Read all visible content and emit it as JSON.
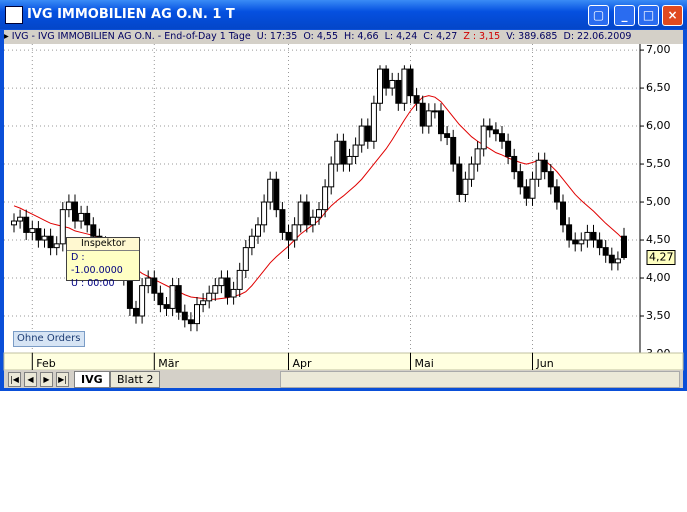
{
  "window": {
    "title": "IVG IMMOBILIEN AG O.N. 1 T"
  },
  "info_bar": {
    "label": "IVG - IVG IMMOBILIEN AG O.N. - End-of-Day 1 Tage",
    "items": [
      {
        "key": "U:",
        "value": "17:35"
      },
      {
        "key": "O:",
        "value": "4,55"
      },
      {
        "key": "H:",
        "value": "4,66"
      },
      {
        "key": "L:",
        "value": "4,24"
      },
      {
        "key": "C:",
        "value": "4,27"
      },
      {
        "key": "Z :",
        "value": "3,15"
      },
      {
        "key": "V:",
        "value": "389.685"
      },
      {
        "key": "D:",
        "value": "22.06.2009"
      }
    ]
  },
  "chart_data": {
    "type": "candlestick",
    "categories": [
      null,
      null,
      null,
      "Feb",
      null,
      null,
      null,
      null,
      null,
      null,
      null,
      null,
      null,
      null,
      null,
      null,
      null,
      null,
      null,
      null,
      null,
      null,
      null,
      "Mär",
      null,
      null,
      null,
      null,
      null,
      null,
      null,
      null,
      null,
      null,
      null,
      null,
      null,
      null,
      null,
      null,
      null,
      null,
      null,
      null,
      null,
      "Apr",
      null,
      null,
      null,
      null,
      null,
      null,
      null,
      null,
      null,
      null,
      null,
      null,
      null,
      null,
      null,
      null,
      null,
      null,
      null,
      "Mai",
      null,
      null,
      null,
      null,
      null,
      null,
      null,
      null,
      null,
      null,
      null,
      null,
      null,
      null,
      null,
      null,
      null,
      null,
      null,
      "Jun",
      null,
      null,
      null,
      null,
      null,
      null,
      null,
      null,
      null,
      null,
      null,
      null,
      null,
      null,
      null
    ],
    "open": [
      4.7,
      4.75,
      4.8,
      4.6,
      4.65,
      4.5,
      4.55,
      4.4,
      4.45,
      4.9,
      5.0,
      4.75,
      4.85,
      4.7,
      4.55,
      4.45,
      4.4,
      4.3,
      4.2,
      4.0,
      3.6,
      3.5,
      3.9,
      4.0,
      3.8,
      3.65,
      3.6,
      3.9,
      3.55,
      3.45,
      3.4,
      3.65,
      3.7,
      3.8,
      3.9,
      4.0,
      3.75,
      3.85,
      4.1,
      4.4,
      4.55,
      4.7,
      5.0,
      5.3,
      4.9,
      4.6,
      4.5,
      4.7,
      5.0,
      4.7,
      4.8,
      4.9,
      5.2,
      5.5,
      5.8,
      5.5,
      5.6,
      5.75,
      6.0,
      5.8,
      6.3,
      6.75,
      6.5,
      6.6,
      6.3,
      6.75,
      6.4,
      6.3,
      6.0,
      6.2,
      6.2,
      5.9,
      5.85,
      5.5,
      5.1,
      5.3,
      5.5,
      5.7,
      6.0,
      5.95,
      5.9,
      5.8,
      5.6,
      5.4,
      5.2,
      5.05,
      5.3,
      5.55,
      5.4,
      5.2,
      5.0,
      4.7,
      4.5,
      4.45,
      4.5,
      4.6,
      4.5,
      4.4,
      4.3,
      4.2,
      4.55
    ],
    "high": [
      4.85,
      4.9,
      4.9,
      4.75,
      4.75,
      4.65,
      4.65,
      4.55,
      5.0,
      5.1,
      5.1,
      4.95,
      4.95,
      4.8,
      4.65,
      4.55,
      4.5,
      4.4,
      4.3,
      4.1,
      3.7,
      4.0,
      4.1,
      4.1,
      3.9,
      3.75,
      4.0,
      4.0,
      3.65,
      3.55,
      3.75,
      3.8,
      3.9,
      4.0,
      4.1,
      4.1,
      3.95,
      4.2,
      4.5,
      4.65,
      4.8,
      5.1,
      5.4,
      5.4,
      5.0,
      4.7,
      4.8,
      5.1,
      5.1,
      4.9,
      5.0,
      5.3,
      5.6,
      5.9,
      5.9,
      5.7,
      5.85,
      6.1,
      6.1,
      6.4,
      6.8,
      6.8,
      6.7,
      6.7,
      6.8,
      6.8,
      6.5,
      6.4,
      6.3,
      6.3,
      6.3,
      6.0,
      5.95,
      5.6,
      5.4,
      5.6,
      5.8,
      6.1,
      6.1,
      6.05,
      6.0,
      5.9,
      5.7,
      5.5,
      5.3,
      5.4,
      5.65,
      5.65,
      5.5,
      5.3,
      5.1,
      4.8,
      4.6,
      4.6,
      4.7,
      4.7,
      4.6,
      4.5,
      4.4,
      4.35,
      4.66
    ],
    "low": [
      4.6,
      4.65,
      4.5,
      4.5,
      4.4,
      4.4,
      4.3,
      4.3,
      4.35,
      4.8,
      4.65,
      4.65,
      4.6,
      4.45,
      4.35,
      4.3,
      4.2,
      4.1,
      3.9,
      3.5,
      3.4,
      3.4,
      3.8,
      3.7,
      3.55,
      3.5,
      3.5,
      3.45,
      3.35,
      3.3,
      3.3,
      3.55,
      3.6,
      3.7,
      3.8,
      3.65,
      3.65,
      3.75,
      4.0,
      4.3,
      4.45,
      4.6,
      4.9,
      4.8,
      4.5,
      4.25,
      4.4,
      4.6,
      4.6,
      4.6,
      4.7,
      4.8,
      5.1,
      5.4,
      5.4,
      5.4,
      5.5,
      5.65,
      5.7,
      5.7,
      6.2,
      6.4,
      6.4,
      6.2,
      6.2,
      6.3,
      6.2,
      5.9,
      5.9,
      6.1,
      5.8,
      5.75,
      5.4,
      5.0,
      5.0,
      5.2,
      5.4,
      5.6,
      5.85,
      5.8,
      5.7,
      5.5,
      5.3,
      5.1,
      4.95,
      4.95,
      5.2,
      5.3,
      5.1,
      4.9,
      4.6,
      4.4,
      4.35,
      4.35,
      4.4,
      4.4,
      4.3,
      4.2,
      4.1,
      4.1,
      4.24
    ],
    "close": [
      4.75,
      4.8,
      4.6,
      4.65,
      4.5,
      4.55,
      4.4,
      4.45,
      4.9,
      5.0,
      4.75,
      4.85,
      4.7,
      4.55,
      4.45,
      4.4,
      4.3,
      4.2,
      4.0,
      3.6,
      3.5,
      3.9,
      4.0,
      3.8,
      3.65,
      3.6,
      3.9,
      3.55,
      3.45,
      3.4,
      3.65,
      3.7,
      3.8,
      3.9,
      4.0,
      3.75,
      3.85,
      4.1,
      4.4,
      4.55,
      4.7,
      5.0,
      5.3,
      4.9,
      4.6,
      4.5,
      4.7,
      5.0,
      4.7,
      4.8,
      4.9,
      5.2,
      5.5,
      5.8,
      5.5,
      5.6,
      5.75,
      6.0,
      5.8,
      6.3,
      6.75,
      6.5,
      6.6,
      6.3,
      6.75,
      6.4,
      6.3,
      6.0,
      6.2,
      6.2,
      5.9,
      5.85,
      5.5,
      5.1,
      5.3,
      5.5,
      5.7,
      6.0,
      5.95,
      5.9,
      5.8,
      5.6,
      5.4,
      5.2,
      5.05,
      5.3,
      5.55,
      5.4,
      5.2,
      5.0,
      4.7,
      4.5,
      4.45,
      4.5,
      4.6,
      4.5,
      4.4,
      4.3,
      4.2,
      4.25,
      4.27
    ],
    "up_color": "#ffffff",
    "down_color": "#000000",
    "overlay": {
      "color": "#e00000",
      "values": [
        4.95,
        4.92,
        4.88,
        4.84,
        4.8,
        4.76,
        4.72,
        4.7,
        4.68,
        4.66,
        4.62,
        4.6,
        4.58,
        4.56,
        4.53,
        4.5,
        4.45,
        4.38,
        4.3,
        4.2,
        4.12,
        4.06,
        4.02,
        3.98,
        3.94,
        3.9,
        3.86,
        3.82,
        3.78,
        3.75,
        3.74,
        3.73,
        3.72,
        3.72,
        3.73,
        3.74,
        3.76,
        3.78,
        3.82,
        3.9,
        4.0,
        4.1,
        4.2,
        4.28,
        4.35,
        4.42,
        4.5,
        4.58,
        4.64,
        4.7,
        4.76,
        4.86,
        4.95,
        5.02,
        5.08,
        5.15,
        5.22,
        5.3,
        5.4,
        5.5,
        5.6,
        5.7,
        5.82,
        5.95,
        6.08,
        6.2,
        6.3,
        6.38,
        6.4,
        6.38,
        6.32,
        6.22,
        6.12,
        6.02,
        5.94,
        5.86,
        5.8,
        5.75,
        5.7,
        5.65,
        5.62,
        5.58,
        5.55,
        5.52,
        5.5,
        5.52,
        5.55,
        5.55,
        5.48,
        5.4,
        5.3,
        5.2,
        5.1,
        5.02,
        4.95,
        4.88,
        4.8,
        4.72,
        4.65,
        4.58,
        4.5
      ]
    },
    "ylim": [
      3.0,
      7.08
    ],
    "yticks": [
      {
        "value": 3,
        "label": "3,00"
      },
      {
        "value": 3.5,
        "label": "3,50"
      },
      {
        "value": 4,
        "label": "4,00"
      },
      {
        "value": 4.5,
        "label": "4,50"
      },
      {
        "value": 5,
        "label": "5,00"
      },
      {
        "value": 5.5,
        "label": "5,50"
      },
      {
        "value": 6,
        "label": "6,00"
      },
      {
        "value": 6.5,
        "label": "6,50"
      },
      {
        "value": 7,
        "label": "7,00"
      }
    ],
    "last_price": {
      "value": 4.27,
      "label": "4,27"
    },
    "grid": true
  },
  "inspector": {
    "title": "Inspektor",
    "lines": [
      "D : -1.00.0000",
      "U : 00:00"
    ]
  },
  "button": "Ohne Orders",
  "tabs": [
    "IVG",
    "Blatt 2"
  ]
}
